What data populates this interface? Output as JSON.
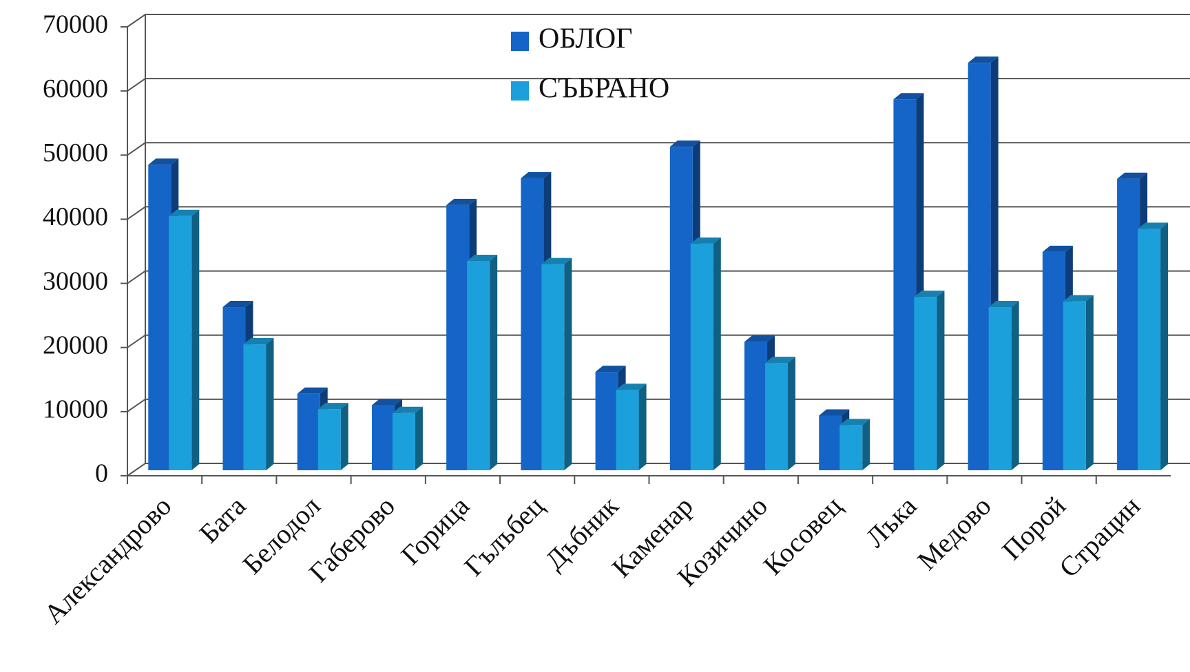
{
  "chart_data": {
    "type": "bar3d",
    "categories": [
      "Александрово",
      "Бата",
      "Белодол",
      "Габерово",
      "Горица",
      "Гълъбец",
      "Дъбник",
      "Каменар",
      "Козичино",
      "Косовец",
      "Лъка",
      "Медово",
      "Порой",
      "Страцин"
    ],
    "series": [
      {
        "name": "ОБЛОГ",
        "color": "#1565c8",
        "values": [
          48500,
          26300,
          12800,
          11000,
          42200,
          46400,
          16200,
          51300,
          20900,
          9400,
          58700,
          64400,
          34900,
          46300
        ]
      },
      {
        "name": "СЪБРАНО",
        "color": "#1ba0dc",
        "values": [
          40500,
          20500,
          10400,
          9800,
          33500,
          33000,
          13400,
          36200,
          17600,
          7900,
          27900,
          26300,
          27200,
          38500
        ]
      }
    ],
    "ylim": [
      0,
      70000
    ],
    "yticks": [
      0,
      10000,
      20000,
      30000,
      40000,
      50000,
      60000,
      70000
    ],
    "grid": true,
    "legend": "top"
  }
}
